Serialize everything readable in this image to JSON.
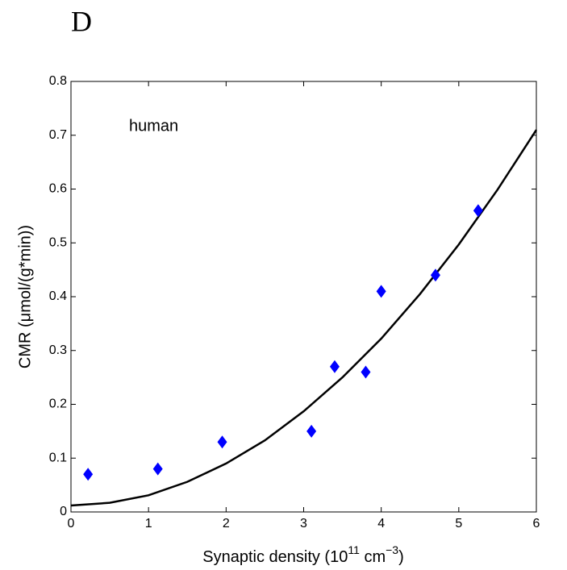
{
  "panel_label": "D",
  "chart_data": {
    "type": "scatter",
    "annotation": "human",
    "ylabel": "CMR  (μmol/(g*min))",
    "xlabel_parts": [
      "Synaptic density  (10",
      "11",
      " cm",
      "−3",
      ")"
    ],
    "xlim": [
      0,
      6
    ],
    "xticks": [
      0,
      1,
      2,
      3,
      4,
      5,
      6
    ],
    "ylim": [
      0,
      0.8
    ],
    "yticks": [
      0,
      0.1,
      0.2,
      0.3,
      0.4,
      0.5,
      0.6,
      0.7,
      0.8
    ],
    "points": {
      "marker": "diamond",
      "color": "#0000ff",
      "x": [
        0.22,
        1.12,
        1.95,
        3.1,
        3.4,
        3.8,
        4.0,
        4.7,
        5.25
      ],
      "y": [
        0.07,
        0.08,
        0.13,
        0.15,
        0.27,
        0.26,
        0.41,
        0.44,
        0.56
      ]
    },
    "fit": {
      "color": "#000000",
      "x": [
        0,
        0.5,
        1,
        1.5,
        2,
        2.5,
        3,
        3.5,
        4,
        4.5,
        5,
        5.5,
        6
      ],
      "y": [
        0.012,
        0.017,
        0.031,
        0.056,
        0.09,
        0.133,
        0.187,
        0.25,
        0.322,
        0.405,
        0.497,
        0.599,
        0.71
      ]
    }
  }
}
